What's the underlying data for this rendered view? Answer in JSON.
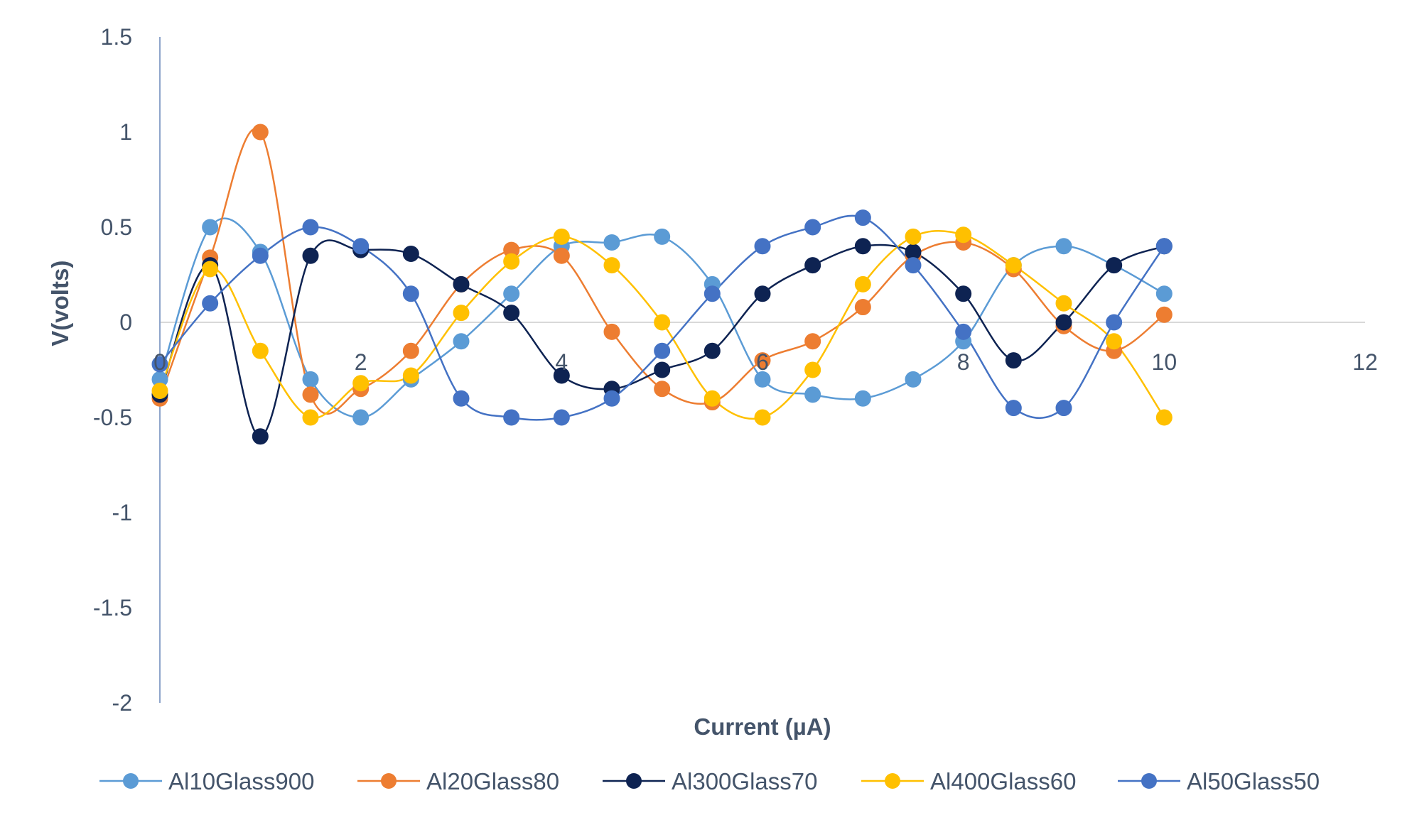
{
  "chart_data": {
    "type": "scatter",
    "title": "",
    "xlabel": "Current (µA)",
    "ylabel": "V(volts)",
    "xlim": [
      0,
      12
    ],
    "ylim": [
      -2,
      1.5
    ],
    "xticks": [
      0,
      2,
      4,
      6,
      8,
      10,
      12
    ],
    "yticks": [
      1.5,
      1,
      0.5,
      0,
      -0.5,
      -1,
      -1.5,
      -2
    ],
    "xtick_labels": [
      "0",
      "2",
      "4",
      "6",
      "8",
      "10",
      "12"
    ],
    "ytick_labels": [
      "1.5",
      "1",
      "0.5",
      "0",
      "-0.5",
      "-1",
      "-1.5",
      "-2"
    ],
    "grid": false,
    "smooth_lines": true,
    "legend_position": "bottom",
    "x": [
      0,
      0.5,
      1,
      1.5,
      2,
      2.5,
      3,
      3.5,
      4,
      4.5,
      5,
      5.5,
      6,
      6.5,
      7,
      7.5,
      8,
      8.5,
      9,
      9.5,
      10
    ],
    "series": [
      {
        "name": "Al10Glass900",
        "color": "#5b9bd5",
        "values": [
          -0.3,
          0.5,
          0.37,
          -0.3,
          -0.5,
          -0.3,
          -0.1,
          0.15,
          0.4,
          0.42,
          0.45,
          0.2,
          -0.3,
          -0.38,
          -0.4,
          -0.3,
          -0.1,
          0.3,
          0.4,
          0.3,
          0.15
        ]
      },
      {
        "name": "Al20Glass80",
        "color": "#ed7d31",
        "values": [
          -0.4,
          0.34,
          1.0,
          -0.38,
          -0.35,
          -0.15,
          0.2,
          0.38,
          0.35,
          -0.05,
          -0.35,
          -0.42,
          -0.2,
          -0.1,
          0.08,
          0.35,
          0.42,
          0.28,
          -0.02,
          -0.15,
          0.04
        ]
      },
      {
        "name": "Al300Glass70",
        "color": "#0e2352",
        "values": [
          -0.38,
          0.3,
          -0.6,
          0.35,
          0.38,
          0.36,
          0.2,
          0.05,
          -0.28,
          -0.35,
          -0.25,
          -0.15,
          0.15,
          0.3,
          0.4,
          0.37,
          0.15,
          -0.2,
          0.0,
          0.3,
          0.4
        ]
      },
      {
        "name": "Al400Glass60",
        "color": "#ffc000",
        "values": [
          -0.36,
          0.28,
          -0.15,
          -0.5,
          -0.32,
          -0.28,
          0.05,
          0.32,
          0.45,
          0.3,
          0.0,
          -0.4,
          -0.5,
          -0.25,
          0.2,
          0.45,
          0.46,
          0.3,
          0.1,
          -0.1,
          -0.5
        ]
      },
      {
        "name": "Al50Glass50",
        "color": "#4472c4",
        "values": [
          -0.22,
          0.1,
          0.35,
          0.5,
          0.4,
          0.15,
          -0.4,
          -0.5,
          -0.5,
          -0.4,
          -0.15,
          0.15,
          0.4,
          0.5,
          0.55,
          0.3,
          -0.05,
          -0.45,
          -0.45,
          0.0,
          0.4
        ]
      }
    ]
  },
  "colors": {
    "axis": "#8ea5cb",
    "zero_line": "#d9d9d9",
    "text": "#44546a"
  }
}
